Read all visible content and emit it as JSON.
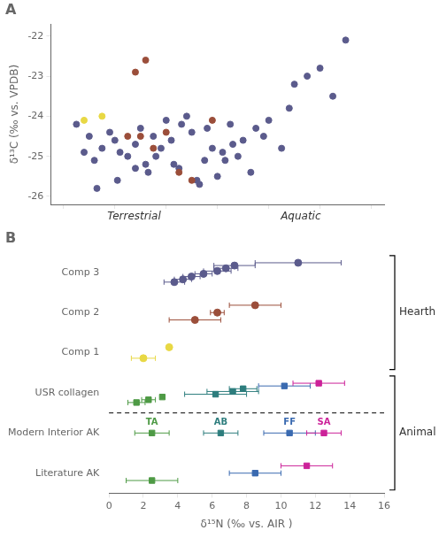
{
  "chart_data": [
    {
      "type": "scatter",
      "title": "A",
      "ylabel": "δ¹³C (‰ vs. VPDB)",
      "annotations": [
        "Terrestrial",
        "Aquatic"
      ],
      "xlim": [
        1.5,
        14.5
      ],
      "xticks": [
        2,
        4,
        6,
        8,
        10,
        12,
        14
      ],
      "ylim": [
        -26.2,
        -21.7
      ],
      "yticks": [
        -26,
        -25,
        -24,
        -23,
        -22
      ],
      "tick_labels": "y",
      "grid": false,
      "series": [
        {
          "color": "#5b5b8c",
          "marker": "circle",
          "x": [
            2.5,
            3.0,
            3.2,
            3.5,
            3.8,
            4.0,
            4.2,
            4.5,
            4.8,
            5.0,
            5.2,
            5.5,
            5.8,
            6.0,
            6.2,
            6.5,
            6.8,
            7.0,
            7.2,
            7.5,
            7.8,
            8.0,
            8.2,
            8.5,
            8.8,
            9.0,
            9.5,
            10.0,
            10.5,
            11.0,
            11.5,
            12.0,
            12.5,
            13.0,
            3.3,
            4.1,
            5.3,
            6.3,
            7.3,
            8.3,
            9.3,
            9.8,
            10.8,
            2.8,
            4.8,
            5.6,
            6.6,
            7.6,
            8.6
          ],
          "y": [
            -24.2,
            -24.5,
            -25.1,
            -24.8,
            -24.4,
            -24.6,
            -24.9,
            -25.0,
            -24.7,
            -24.3,
            -25.2,
            -24.5,
            -24.8,
            -24.1,
            -24.6,
            -25.3,
            -24.0,
            -24.4,
            -25.6,
            -25.1,
            -24.8,
            -25.5,
            -24.9,
            -24.2,
            -25.0,
            -24.6,
            -24.3,
            -24.1,
            -24.8,
            -23.2,
            -23.0,
            -22.8,
            -23.5,
            -22.1,
            -25.8,
            -25.6,
            -25.4,
            -25.2,
            -25.7,
            -25.1,
            -25.4,
            -24.5,
            -23.8,
            -24.9,
            -25.3,
            -25.0,
            -24.2,
            -24.3,
            -24.7
          ]
        },
        {
          "color": "#9b4e3a",
          "marker": "circle",
          "x": [
            4.5,
            5.0,
            5.5,
            6.0,
            6.5,
            7.0,
            5.2,
            4.8,
            7.8
          ],
          "y": [
            -24.5,
            -24.5,
            -24.8,
            -24.4,
            -25.4,
            -25.6,
            -22.6,
            -22.9,
            -24.1
          ]
        },
        {
          "color": "#e8d844",
          "marker": "circle",
          "x": [
            2.8,
            3.5
          ],
          "y": [
            -24.1,
            -24.0
          ]
        }
      ]
    },
    {
      "type": "errorbar",
      "title": "B",
      "xlabel": "δ¹⁵N (‰ vs. AIR )",
      "xlim": [
        0,
        16
      ],
      "xticks": [
        0,
        2,
        4,
        6,
        8,
        10,
        12,
        14,
        16
      ],
      "grid": false,
      "categories": [
        "Comp 3",
        "Comp 2",
        "Comp 1",
        "USR collagen",
        "Modern Interior AK",
        "Literature AK"
      ],
      "series": [
        {
          "color": "#5b5b8c",
          "marker": "circle",
          "x": [
            3.8,
            4.3,
            4.8,
            5.5,
            6.3,
            6.8,
            7.3,
            11.0
          ],
          "xerr": [
            0.6,
            0.5,
            0.5,
            0.5,
            0.8,
            0.7,
            1.2,
            2.5
          ]
        },
        {
          "color": "#9b4e3a",
          "marker": "circle",
          "x": [
            5.0,
            6.3,
            8.5
          ],
          "xerr": [
            1.5,
            0.4,
            1.5
          ]
        },
        {
          "color": "#e8d844",
          "marker": "circle",
          "x": [
            2.0,
            3.5
          ],
          "xerr": [
            0.7,
            0.0
          ]
        },
        {
          "colors": [
            "#4e9a45",
            "#4e9a45",
            "#4e9a45",
            "#2d7d7d",
            "#2d7d7d",
            "#2d7d7d",
            "#3a6ab0",
            "#cc2299"
          ],
          "marker": "square",
          "x": [
            1.6,
            2.3,
            3.1,
            6.2,
            7.2,
            7.8,
            10.2,
            12.2
          ],
          "xerr": [
            0.5,
            0.4,
            0.0,
            1.8,
            1.5,
            0.8,
            1.5,
            1.5
          ]
        },
        {
          "colors": [
            "#4e9a45",
            "#2d7d7d",
            "#3a6ab0",
            "#cc2299"
          ],
          "marker": "square",
          "x": [
            2.5,
            6.5,
            10.5,
            12.5
          ],
          "xerr": [
            1.0,
            1.0,
            1.5,
            1.0
          ],
          "point_labels": [
            "TA",
            "AB",
            "FF",
            "SA"
          ]
        },
        {
          "colors": [
            "#4e9a45",
            "#3a6ab0",
            "#cc2299"
          ],
          "marker": "square",
          "x": [
            2.5,
            8.5,
            11.5
          ],
          "xerr": [
            1.5,
            1.5,
            1.5
          ]
        }
      ],
      "separators": [
        {
          "between": [
            "USR collagen",
            "Modern Interior AK"
          ],
          "line_style": "dashed"
        }
      ],
      "brackets": [
        {
          "label": "Hearth",
          "from": "Comp 3",
          "to": "Comp 1"
        },
        {
          "label": "Animal",
          "from": "USR collagen",
          "to": "Literature AK"
        }
      ]
    }
  ]
}
